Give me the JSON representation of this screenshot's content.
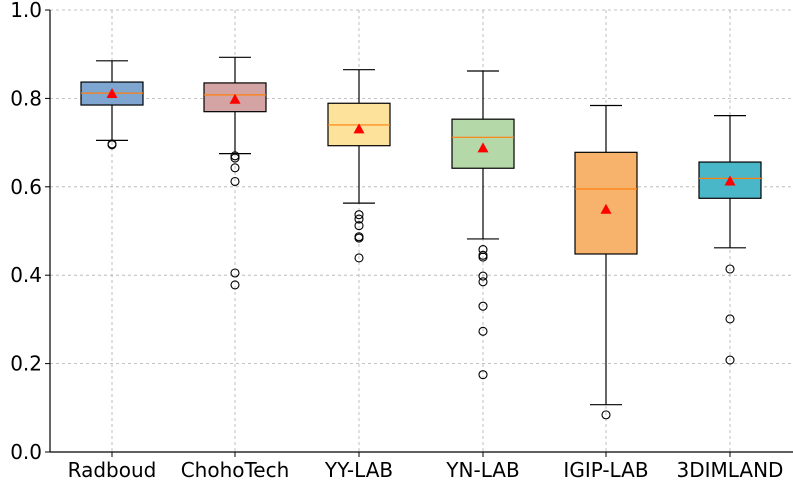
{
  "chart_data": {
    "type": "box",
    "title": "",
    "xlabel": "",
    "ylabel": "",
    "ylim": [
      0.0,
      1.0
    ],
    "yticks": [
      "0.0",
      "0.2",
      "0.4",
      "0.6",
      "0.8",
      "1.0"
    ],
    "grid": true,
    "categories": [
      "Radboud",
      "ChohoTech",
      "YY-LAB",
      "YN-LAB",
      "IGIP-LAB",
      "3DIMLAND"
    ],
    "boxes": [
      {
        "name": "Radboud",
        "color": "#7ea6d0",
        "whisker_low": 0.705,
        "q1": 0.785,
        "median": 0.812,
        "q3": 0.837,
        "whisker_high": 0.885,
        "mean": 0.81,
        "outliers": [
          0.697,
          0.695
        ]
      },
      {
        "name": "ChohoTech",
        "color": "#d4a3a3",
        "whisker_low": 0.675,
        "q1": 0.77,
        "median": 0.808,
        "q3": 0.835,
        "whisker_high": 0.893,
        "mean": 0.797,
        "outliers": [
          0.67,
          0.665,
          0.643,
          0.612,
          0.405,
          0.378
        ]
      },
      {
        "name": "YY-LAB",
        "color": "#fde29b",
        "whisker_low": 0.563,
        "q1": 0.693,
        "median": 0.74,
        "q3": 0.789,
        "whisker_high": 0.865,
        "mean": 0.73,
        "outliers": [
          0.537,
          0.527,
          0.512,
          0.487,
          0.484,
          0.439
        ]
      },
      {
        "name": "YN-LAB",
        "color": "#b5d8a8",
        "whisker_low": 0.482,
        "q1": 0.642,
        "median": 0.712,
        "q3": 0.753,
        "whisker_high": 0.862,
        "mean": 0.687,
        "outliers": [
          0.458,
          0.445,
          0.441,
          0.398,
          0.385,
          0.33,
          0.273,
          0.175
        ]
      },
      {
        "name": "IGIP-LAB",
        "color": "#f7b26b",
        "whisker_low": 0.107,
        "q1": 0.448,
        "median": 0.595,
        "q3": 0.678,
        "whisker_high": 0.784,
        "mean": 0.548,
        "outliers": [
          0.084
        ]
      },
      {
        "name": "3DIMLAND",
        "color": "#4ab7c8",
        "whisker_low": 0.462,
        "q1": 0.574,
        "median": 0.619,
        "q3": 0.656,
        "whisker_high": 0.761,
        "mean": 0.612,
        "outliers": [
          0.414,
          0.301,
          0.208
        ]
      }
    ],
    "median_color": "#ff7f0e",
    "mean_marker_color": "#ff0000"
  }
}
